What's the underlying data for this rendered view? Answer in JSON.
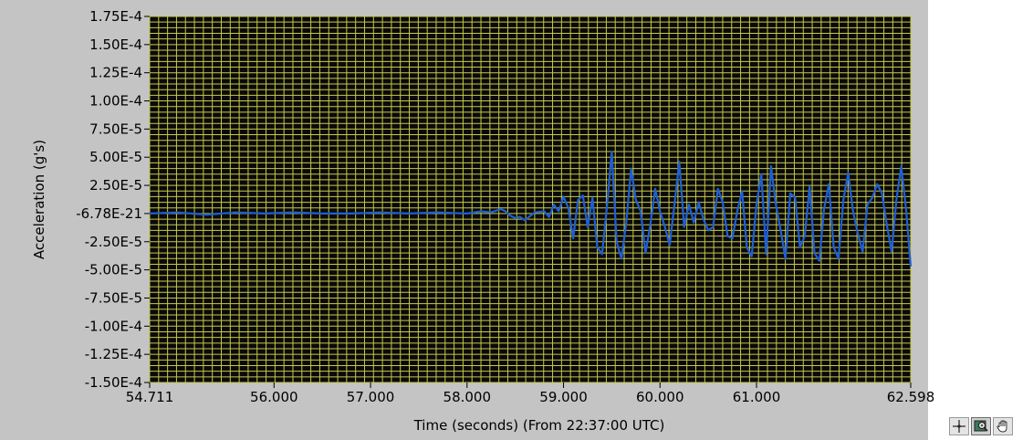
{
  "chart_data": {
    "type": "line",
    "title": "",
    "xlabel": "Time (seconds) (From 22:37:00 UTC)",
    "ylabel": "Acceleration (g's)",
    "xlim": [
      54.711,
      62.598
    ],
    "ylim": [
      -0.00015,
      0.000175
    ],
    "x_tick_values": [
      54.711,
      56.0,
      57.0,
      58.0,
      59.0,
      60.0,
      61.0,
      62.598
    ],
    "x_tick_labels": [
      "54.711",
      "56.000",
      "57.000",
      "58.000",
      "59.000",
      "60.000",
      "61.000",
      "62.598"
    ],
    "y_tick_values": [
      0.000175,
      0.00015,
      0.000125,
      0.0001,
      7.5e-05,
      5e-05,
      2.5e-05,
      0,
      -2.5e-05,
      -5e-05,
      -7.5e-05,
      -0.0001,
      -0.000125,
      -0.00015
    ],
    "y_tick_labels": [
      "1.75E-4",
      "1.50E-4",
      "1.25E-4",
      "1.00E-4",
      "7.50E-5",
      "5.00E-5",
      "2.50E-5",
      "-6.78E-21",
      "-2.50E-5",
      "-5.00E-5",
      "-7.50E-5",
      "-1.00E-4",
      "-1.25E-4",
      "-1.50E-4"
    ],
    "grid": true,
    "colors": {
      "plot_bg": "#0a0a0a",
      "grid": "#c8c84a",
      "series": "#1f5fd6",
      "frame": "#c4c4c4"
    },
    "series": [
      {
        "x": [
          54.711,
          55.0,
          55.3,
          55.6,
          55.9,
          56.2,
          56.5,
          56.8,
          57.1,
          57.4,
          57.7,
          58.0,
          58.15,
          58.25,
          58.35,
          58.4,
          58.45,
          58.5,
          58.55,
          58.6,
          58.7,
          58.8,
          58.85,
          58.9,
          58.95,
          59.0,
          59.05,
          59.1,
          59.15,
          59.2,
          59.25,
          59.3,
          59.35,
          59.4,
          59.45,
          59.5,
          59.55,
          59.6,
          59.65,
          59.7,
          59.75,
          59.8,
          59.85,
          59.9,
          59.95,
          60.0,
          60.05,
          60.1,
          60.15,
          60.2,
          60.25,
          60.3,
          60.35,
          60.4,
          60.45,
          60.5,
          60.55,
          60.6,
          60.65,
          60.7,
          60.75,
          60.8,
          60.85,
          60.9,
          60.95,
          61.0,
          61.05,
          61.1,
          61.15,
          61.2,
          61.25,
          61.3,
          61.35,
          61.4,
          61.45,
          61.5,
          61.55,
          61.6,
          61.65,
          61.7,
          61.75,
          61.8,
          61.85,
          61.9,
          61.95,
          62.0,
          62.05,
          62.1,
          62.15,
          62.2,
          62.25,
          62.3,
          62.35,
          62.4,
          62.45,
          62.5,
          62.55,
          62.598
        ],
        "y": [
          0,
          1e-06,
          -1e-06,
          1e-06,
          0,
          1e-06,
          0,
          0,
          1e-06,
          0,
          1e-06,
          0,
          2e-06,
          1e-06,
          4e-06,
          2e-06,
          -2e-06,
          -4e-06,
          -3e-06,
          -6e-06,
          1e-06,
          2e-06,
          -3e-06,
          8e-06,
          2e-06,
          1.5e-05,
          5e-06,
          -2.2e-05,
          1.2e-05,
          1.6e-05,
          -1.2e-05,
          1.4e-05,
          -3e-05,
          -3.6e-05,
          6e-06,
          5.5e-05,
          -2.5e-05,
          -4e-05,
          -8e-06,
          4e-05,
          1.2e-05,
          2e-06,
          -3.5e-05,
          -1e-05,
          2.2e-05,
          2e-06,
          -1.2e-05,
          -2.8e-05,
          8e-06,
          4.6e-05,
          -1.2e-05,
          8e-06,
          -8e-06,
          1e-05,
          -5e-06,
          -1.5e-05,
          -1.2e-05,
          2.2e-05,
          1e-05,
          -2e-05,
          -2.2e-05,
          2e-06,
          2e-05,
          -3e-05,
          -3.8e-05,
          8e-06,
          3.5e-05,
          -3.6e-05,
          4.2e-05,
          8e-06,
          -1.5e-05,
          -4e-05,
          1.8e-05,
          1.4e-05,
          -3e-05,
          -2e-05,
          2.4e-05,
          -3.5e-05,
          -4.2e-05,
          4e-06,
          2.6e-05,
          -3e-05,
          -4e-05,
          1.2e-05,
          3.6e-05,
          2e-06,
          -1.8e-05,
          -3.4e-05,
          8e-06,
          1.4e-05,
          2.6e-05,
          1.8e-05,
          -1e-05,
          -3.4e-05,
          1.2e-05,
          4.2e-05,
          4e-06,
          -4.7e-05
        ]
      }
    ]
  },
  "palette": {
    "cursor_icon": "crosshair-icon",
    "zoom_icon": "zoom-icon",
    "pan_icon": "hand-pan-icon"
  }
}
